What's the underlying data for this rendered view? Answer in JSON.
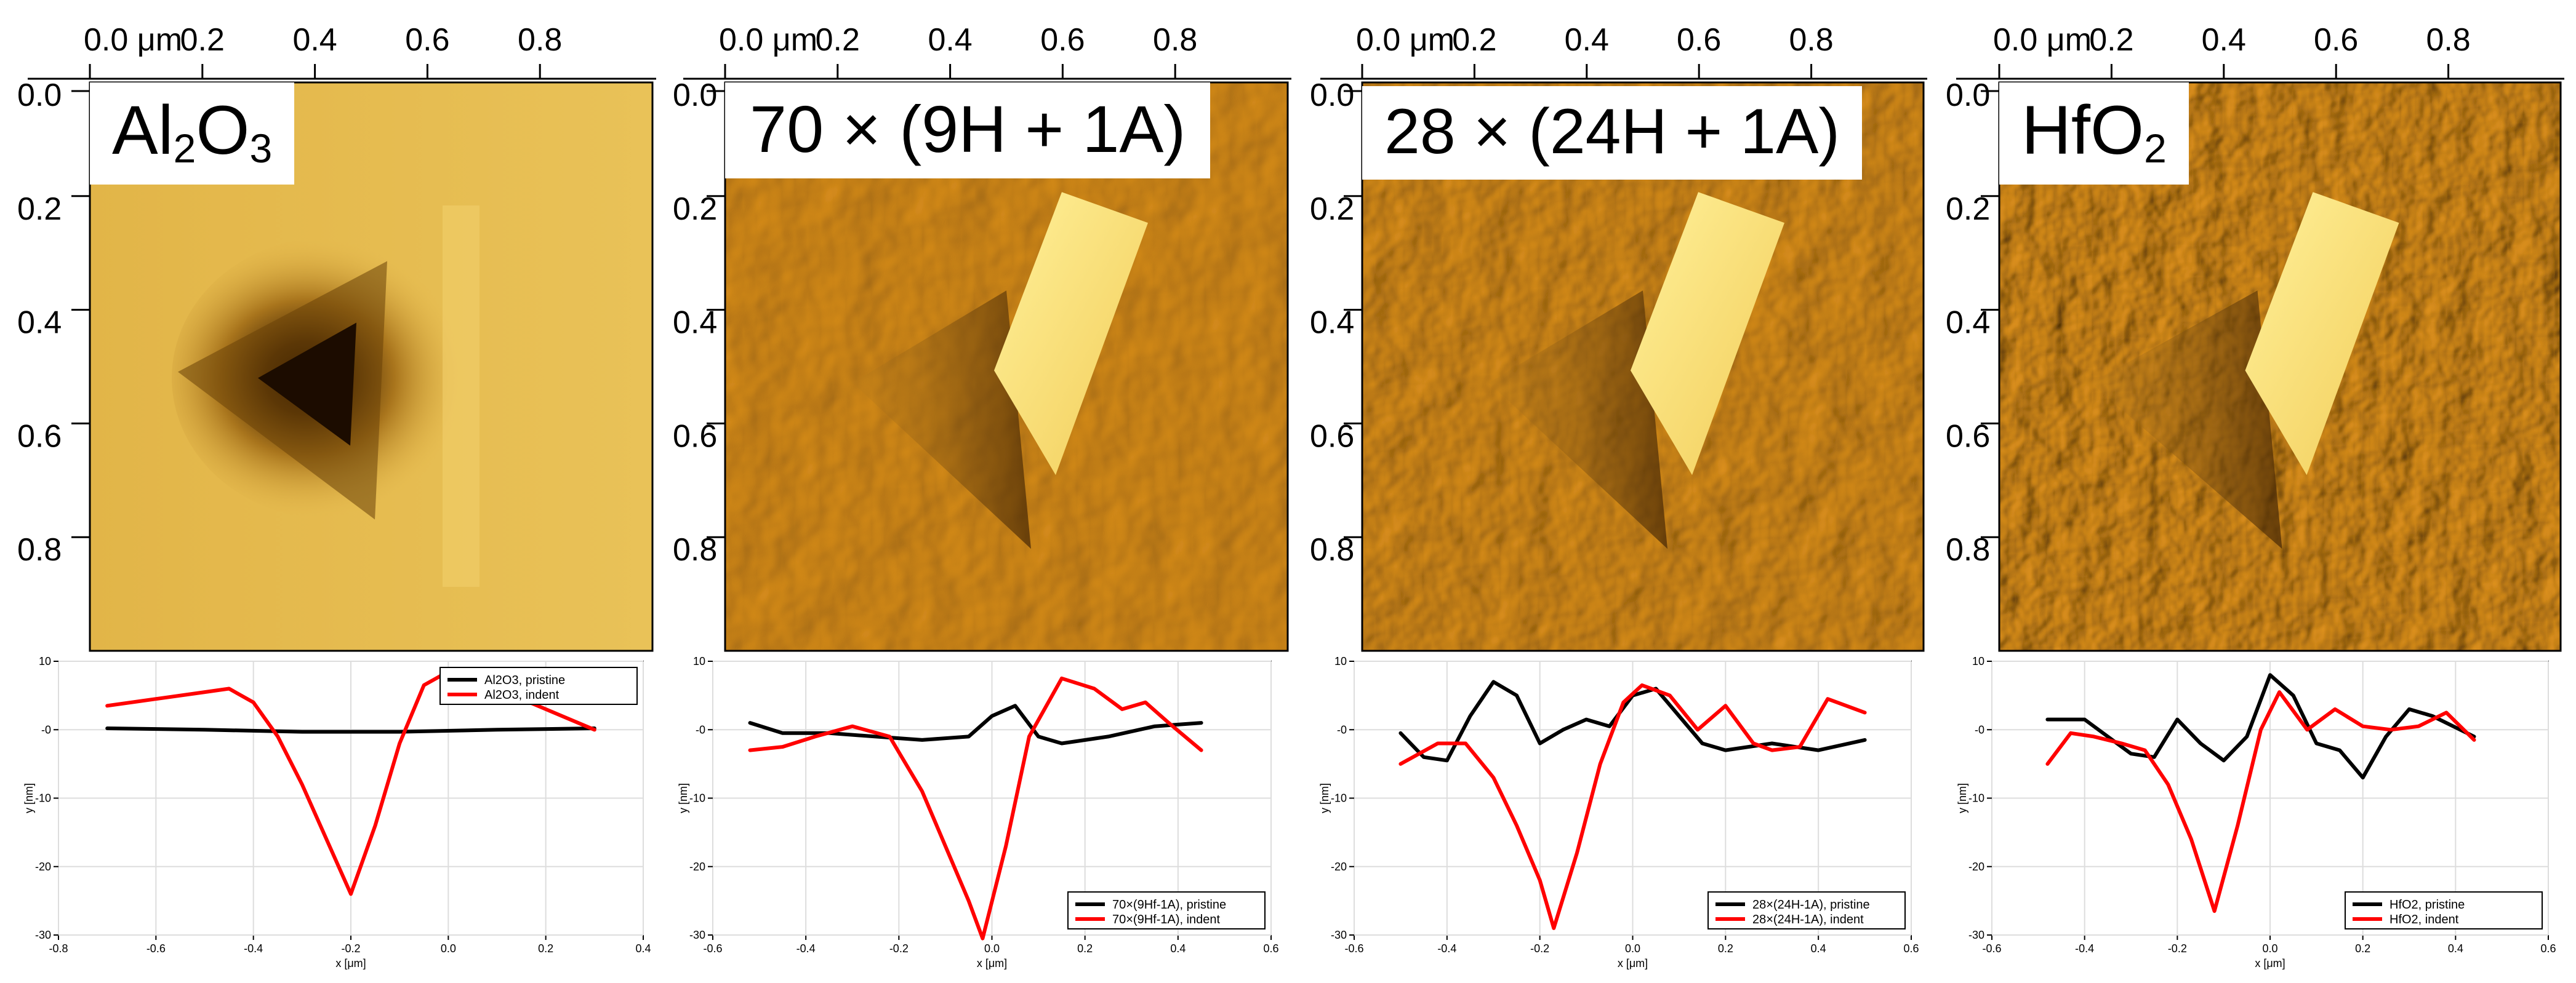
{
  "figure": {
    "axes": {
      "top_unit": "μm",
      "x_tick_labels": [
        "0.0 μm",
        "0.2",
        "0.4",
        "0.6",
        "0.8"
      ],
      "y_tick_labels": [
        "0.0",
        "0.2",
        "0.4",
        "0.6",
        "0.8"
      ]
    },
    "panels": [
      {
        "label_main": "Al",
        "label_sub1": "2",
        "label_mid": "O",
        "label_sub2": "3"
      },
      {
        "label_main": "70 × (9H + 1A)",
        "label_sub1": "",
        "label_mid": "",
        "label_sub2": ""
      },
      {
        "label_main": "28 × (24H + 1A)",
        "label_sub1": "",
        "label_mid": "",
        "label_sub2": ""
      },
      {
        "label_main": "HfO",
        "label_sub1": "2",
        "label_mid": "",
        "label_sub2": ""
      }
    ]
  },
  "colors": {
    "afm_dark": "#3a2000",
    "afm_mid": "#c68a22",
    "afm_light": "#f8e070",
    "afm_flat": "#e6b94c",
    "pristine": "#000000",
    "indent": "#ff0000",
    "grid": "#dddddd"
  },
  "chart_data": [
    {
      "type": "line",
      "title": "Al2O3",
      "xlabel": "x [μm]",
      "ylabel": "y [nm]",
      "xlim": [
        -0.8,
        0.4
      ],
      "ylim": [
        -30,
        10
      ],
      "xticks": [
        -0.8,
        -0.6,
        -0.4,
        -0.2,
        0.0,
        0.2,
        0.4
      ],
      "yticks": [
        10,
        0,
        -10,
        -20,
        -30
      ],
      "xtick_labels": [
        "-0.8",
        "-0.6",
        "-0.4",
        "-0.2",
        "0.0",
        "0.2",
        "0.4"
      ],
      "ytick_labels": [
        "10",
        "-0",
        "-10",
        "-20",
        "-30"
      ],
      "legend_position": "top-right",
      "series": [
        {
          "name": "Al2O3, pristine",
          "color": "#000000",
          "x": [
            -0.7,
            -0.5,
            -0.3,
            -0.1,
            0.1,
            0.3
          ],
          "y": [
            0.2,
            0.0,
            -0.3,
            -0.3,
            0.0,
            0.2
          ]
        },
        {
          "name": "Al2O3, indent",
          "color": "#ff0000",
          "x": [
            -0.7,
            -0.6,
            -0.5,
            -0.45,
            -0.4,
            -0.35,
            -0.3,
            -0.25,
            -0.2,
            -0.15,
            -0.1,
            -0.05,
            0.0,
            0.05,
            0.1,
            0.2,
            0.3
          ],
          "y": [
            3.5,
            4.5,
            5.5,
            6.0,
            4.0,
            -1.0,
            -8.0,
            -16.0,
            -24.0,
            -14.0,
            -2.0,
            6.5,
            8.5,
            7.5,
            6.0,
            3.0,
            0.0
          ]
        }
      ]
    },
    {
      "type": "line",
      "title": "70 × (9H + 1A)",
      "xlabel": "x [μm]",
      "ylabel": "y [nm]",
      "xlim": [
        -0.6,
        0.6
      ],
      "ylim": [
        -30,
        10
      ],
      "xticks": [
        -0.6,
        -0.4,
        -0.2,
        0.0,
        0.2,
        0.4,
        0.6
      ],
      "yticks": [
        10,
        0,
        -10,
        -20,
        -30
      ],
      "xtick_labels": [
        "-0.6",
        "-0.4",
        "-0.2",
        "0.0",
        "0.2",
        "0.4",
        "0.6"
      ],
      "ytick_labels": [
        "10",
        "-0",
        "-10",
        "-20",
        "-30"
      ],
      "legend_position": "bottom-right",
      "series": [
        {
          "name": "70×(9Hf-1A), pristine",
          "color": "#000000",
          "x": [
            -0.52,
            -0.45,
            -0.35,
            -0.25,
            -0.15,
            -0.05,
            0.0,
            0.05,
            0.1,
            0.15,
            0.25,
            0.35,
            0.45
          ],
          "y": [
            1.0,
            -0.5,
            -0.5,
            -1.0,
            -1.5,
            -1.0,
            2.0,
            3.5,
            -1.0,
            -2.0,
            -1.0,
            0.5,
            1.0
          ]
        },
        {
          "name": "70×(9Hf-1A), indent",
          "color": "#ff0000",
          "x": [
            -0.52,
            -0.45,
            -0.38,
            -0.3,
            -0.22,
            -0.15,
            -0.1,
            -0.05,
            -0.02,
            0.03,
            0.08,
            0.15,
            0.22,
            0.28,
            0.33,
            0.38,
            0.45
          ],
          "y": [
            -3.0,
            -2.5,
            -1.0,
            0.5,
            -1.0,
            -9.0,
            -17.0,
            -25.0,
            -30.5,
            -17.0,
            -1.0,
            7.5,
            6.0,
            3.0,
            4.0,
            1.0,
            -3.0
          ]
        }
      ]
    },
    {
      "type": "line",
      "title": "28 × (24H + 1A)",
      "xlabel": "x [μm]",
      "ylabel": "y [nm]",
      "xlim": [
        -0.6,
        0.6
      ],
      "ylim": [
        -30,
        10
      ],
      "xticks": [
        -0.6,
        -0.4,
        -0.2,
        0.0,
        0.2,
        0.4,
        0.6
      ],
      "yticks": [
        10,
        0,
        -10,
        -20,
        -30
      ],
      "xtick_labels": [
        "-0.6",
        "-0.4",
        "-0.2",
        "0.0",
        "0.2",
        "0.4",
        "0.6"
      ],
      "ytick_labels": [
        "10",
        "-0",
        "-10",
        "-20",
        "-30"
      ],
      "legend_position": "bottom-right",
      "series": [
        {
          "name": "28×(24H-1A), pristine",
          "color": "#000000",
          "x": [
            -0.5,
            -0.45,
            -0.4,
            -0.35,
            -0.3,
            -0.25,
            -0.2,
            -0.15,
            -0.1,
            -0.05,
            0.0,
            0.05,
            0.1,
            0.15,
            0.2,
            0.3,
            0.4,
            0.5
          ],
          "y": [
            -0.5,
            -4.0,
            -4.5,
            2.0,
            7.0,
            5.0,
            -2.0,
            0.0,
            1.5,
            0.5,
            5.0,
            6.0,
            2.0,
            -2.0,
            -3.0,
            -2.0,
            -3.0,
            -1.5
          ]
        },
        {
          "name": "28×(24H-1A), indent",
          "color": "#ff0000",
          "x": [
            -0.5,
            -0.42,
            -0.36,
            -0.3,
            -0.25,
            -0.2,
            -0.17,
            -0.12,
            -0.07,
            -0.02,
            0.02,
            0.08,
            0.14,
            0.2,
            0.26,
            0.3,
            0.36,
            0.42,
            0.5
          ],
          "y": [
            -5.0,
            -2.0,
            -2.0,
            -7.0,
            -14.0,
            -22.0,
            -29.0,
            -18.0,
            -5.0,
            4.0,
            6.5,
            5.0,
            0.0,
            3.5,
            -2.0,
            -3.0,
            -2.5,
            4.5,
            2.5
          ]
        }
      ]
    },
    {
      "type": "line",
      "title": "HfO2",
      "xlabel": "x [μm]",
      "ylabel": "y [nm]",
      "xlim": [
        -0.6,
        0.6
      ],
      "ylim": [
        -30,
        10
      ],
      "xticks": [
        -0.6,
        -0.4,
        -0.2,
        0.0,
        0.2,
        0.4,
        0.6
      ],
      "yticks": [
        10,
        0,
        -10,
        -20,
        -30
      ],
      "xtick_labels": [
        "-0.6",
        "-0.4",
        "-0.2",
        "0.0",
        "0.2",
        "0.4",
        "0.6"
      ],
      "ytick_labels": [
        "10",
        "-0",
        "-10",
        "-20",
        "-30"
      ],
      "legend_position": "bottom-right",
      "series": [
        {
          "name": "HfO2, pristine",
          "color": "#000000",
          "x": [
            -0.48,
            -0.4,
            -0.35,
            -0.3,
            -0.25,
            -0.2,
            -0.15,
            -0.1,
            -0.05,
            0.0,
            0.05,
            0.1,
            0.15,
            0.2,
            0.25,
            0.3,
            0.35,
            0.44
          ],
          "y": [
            1.5,
            1.5,
            -1.0,
            -3.5,
            -4.0,
            1.5,
            -2.0,
            -4.5,
            -1.0,
            8.0,
            5.0,
            -2.0,
            -3.0,
            -7.0,
            -1.0,
            3.0,
            2.0,
            -1.0
          ]
        },
        {
          "name": "HfO2, indent",
          "color": "#ff0000",
          "x": [
            -0.48,
            -0.43,
            -0.38,
            -0.32,
            -0.27,
            -0.22,
            -0.17,
            -0.12,
            -0.07,
            -0.02,
            0.02,
            0.08,
            0.14,
            0.2,
            0.26,
            0.32,
            0.38,
            0.44
          ],
          "y": [
            -5.0,
            -0.5,
            -1.0,
            -2.0,
            -3.0,
            -8.0,
            -16.0,
            -26.5,
            -14.0,
            0.0,
            5.5,
            0.0,
            3.0,
            0.5,
            0.0,
            0.5,
            2.5,
            -1.5
          ]
        }
      ]
    }
  ]
}
